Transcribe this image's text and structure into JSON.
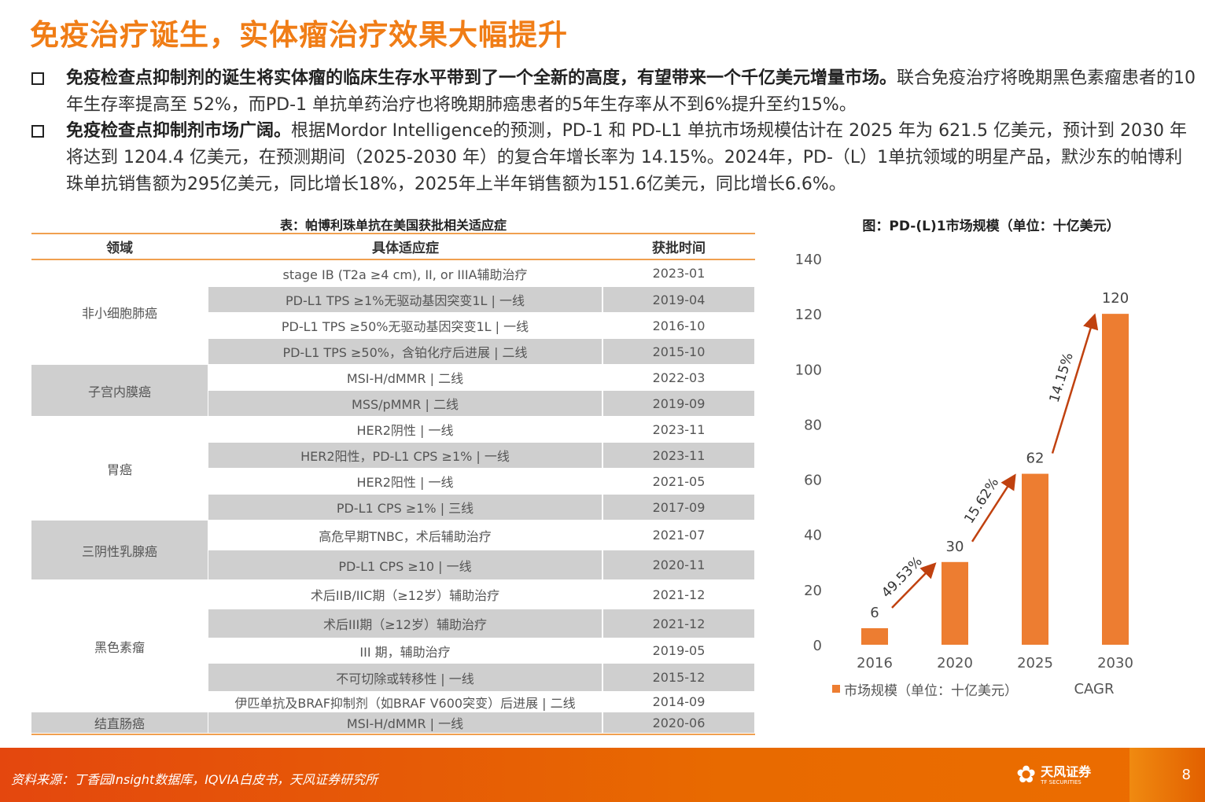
{
  "title": "免疫治疗诞生，实体瘤治疗效果大幅提升",
  "bullets": [
    {
      "bold": "免疫检查点抑制剂的诞生将实体瘤的临床生存水平带到了一个全新的高度，有望带来一个千亿美元增量市场。",
      "text": "联合免疫治疗将晚期黑色素瘤患者的10年生存率提高至 52%，而PD-1 单抗单药治疗也将晚期肺癌患者的5年生存率从不到6%提升至约15%。"
    },
    {
      "bold": "免疫检查点抑制剂市场广阔。",
      "text": "根据Mordor Intelligence的预测，PD-1 和 PD-L1 单抗市场规模估计在 2025 年为 621.5 亿美元，预计到 2030 年将达到 1204.4 亿美元，在预测期间（2025-2030 年）的复合年增长率为 14.15%。2024年，PD-（L）1单抗领域的明星产品，默沙东的帕博利珠单抗销售额为295亿美元，同比增长18%，2025年上半年销售额为151.6亿美元，同比增长6.6%。"
    }
  ],
  "table": {
    "title": "表：帕博利珠单抗在美国获批相关适应症",
    "headers": [
      "领域",
      "具体适应症",
      "获批时间"
    ],
    "groups": [
      {
        "field": "非小细胞肺癌",
        "rows": [
          [
            "stage IB (T2a ≥4 cm), II, or IIIA辅助治疗",
            "2023-01"
          ],
          [
            "PD-L1 TPS ≥1%无驱动基因突变1L | 一线",
            "2019-04"
          ],
          [
            "PD-L1 TPS ≥50%无驱动基因突变1L | 一线",
            "2016-10"
          ],
          [
            "PD-L1 TPS ≥50%，含铂化疗后进展 | 二线",
            "2015-10"
          ]
        ]
      },
      {
        "field": "子宫内膜癌",
        "rows": [
          [
            "MSI-H/dMMR | 二线",
            "2022-03"
          ],
          [
            "MSS/pMMR | 二线",
            "2019-09"
          ]
        ]
      },
      {
        "field": "胃癌",
        "rows": [
          [
            "HER2阴性 | 一线",
            "2023-11"
          ],
          [
            "HER2阳性，PD-L1 CPS ≥1% | 一线",
            "2023-11"
          ],
          [
            "HER2阳性 | 一线",
            "2021-05"
          ],
          [
            "PD-L1 CPS ≥1%  | 三线",
            "2017-09"
          ]
        ]
      },
      {
        "field": "三阴性乳腺癌",
        "rows": [
          [
            "高危早期TNBC，术后辅助治疗",
            "2021-07"
          ],
          [
            "PD-L1 CPS ≥10 | 一线",
            "2020-11"
          ]
        ]
      },
      {
        "field": "黑色素瘤",
        "rows": [
          [
            "术后IIB/IIC期（≥12岁）辅助治疗",
            "2021-12"
          ],
          [
            "术后III期（≥12岁）辅助治疗",
            "2021-12"
          ],
          [
            "III 期，辅助治疗",
            "2019-05"
          ],
          [
            "不可切除或转移性 | 一线",
            "2015-12"
          ],
          [
            "伊匹单抗及BRAF抑制剂（如BRAF V600突变）后进展 | 二线",
            "2014-09"
          ]
        ]
      },
      {
        "field": "结直肠癌",
        "rows": [
          [
            "MSI-H/dMMR | 一线",
            "2020-06"
          ]
        ]
      }
    ]
  },
  "chart_title": "图：PD-(L)1市场规模（单位：十亿美元）",
  "chart_data": {
    "type": "bar",
    "title": "图：PD-(L)1市场规模（单位：十亿美元）",
    "categories": [
      "2016",
      "2020",
      "2025",
      "2030"
    ],
    "values": [
      6,
      30,
      62,
      120
    ],
    "ylim": [
      0,
      140
    ],
    "yticks": [
      "0",
      "20",
      "40",
      "60",
      "80",
      "100",
      "120",
      "140"
    ],
    "legend": "市场规模（单位：十亿美元）",
    "legend_extra": "CAGR",
    "cagr": [
      "49.53%",
      "15.62%",
      "14.15%"
    ],
    "color": "#ed7d31"
  },
  "footer": {
    "source": "资料来源：丁香园Insight数据库，IQVIA白皮书，天风证券研究所",
    "logo": "天风证券",
    "logo_sub": "TF SECURITIES",
    "page": "8"
  }
}
